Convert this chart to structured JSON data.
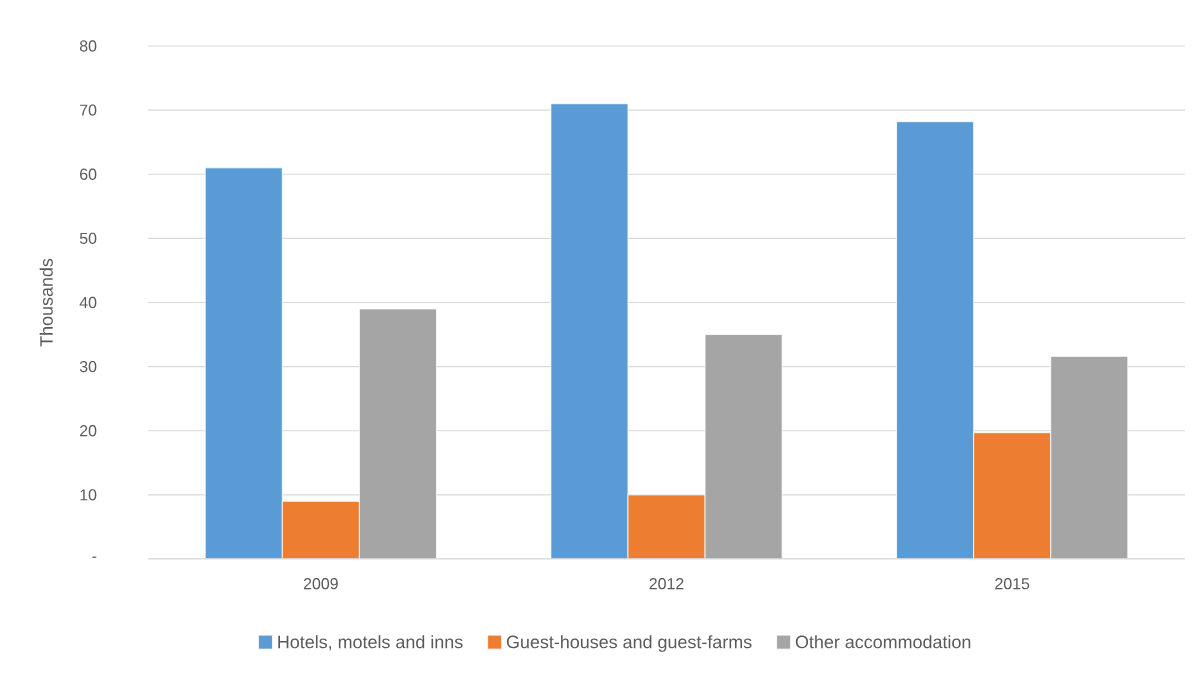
{
  "chart_data": {
    "type": "bar",
    "ylabel": "Thousands",
    "categories": [
      "2009",
      "2012",
      "2015"
    ],
    "series": [
      {
        "name": "Hotels, motels and inns",
        "color": "#5b9bd5",
        "values": [
          61,
          71,
          68.2
        ]
      },
      {
        "name": "Guest-houses and guest-farms",
        "color": "#ed7d31",
        "values": [
          9,
          10,
          19.7
        ]
      },
      {
        "name": "Other accommodation",
        "color": "#a5a5a5",
        "values": [
          39,
          35,
          31.6
        ]
      }
    ],
    "ylim": [
      0,
      80
    ],
    "yticks": [
      {
        "value": 0,
        "label": "-"
      },
      10,
      20,
      30,
      40,
      50,
      60,
      70,
      80
    ],
    "grid": "y",
    "legend": "bottom"
  }
}
